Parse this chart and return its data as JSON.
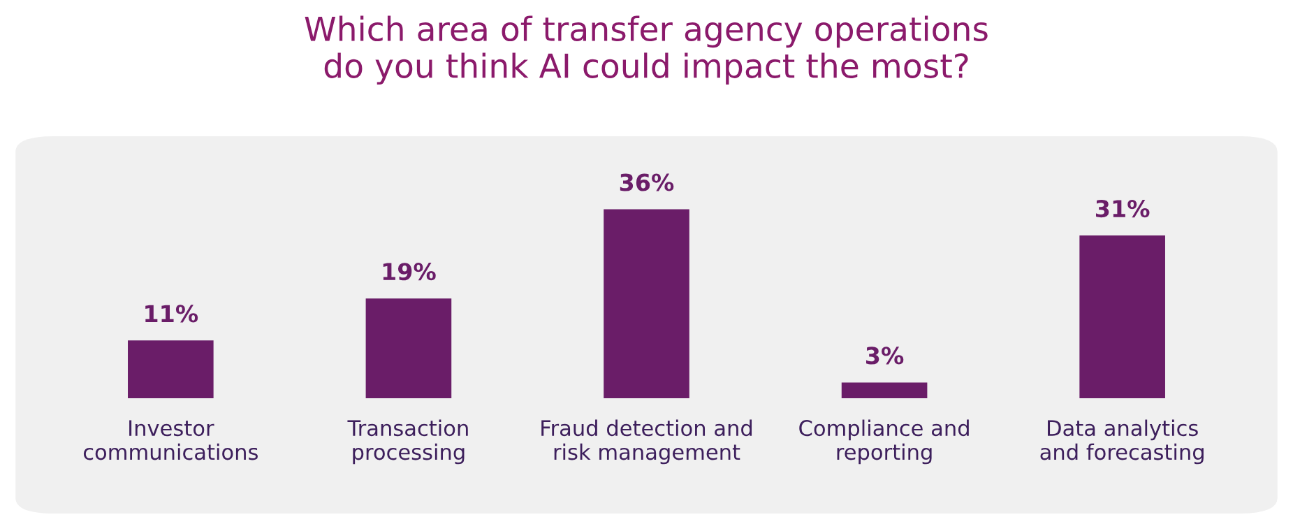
{
  "chart_data": {
    "type": "bar",
    "title": "Which area of transfer agency operations\ndo you think AI could impact the most?",
    "categories": [
      "Investor\ncommunications",
      "Transaction\nprocessing",
      "Fraud detection and\nrisk management",
      "Compliance and\nreporting",
      "Data analytics\nand forecasting"
    ],
    "values": [
      11,
      19,
      36,
      3,
      31
    ],
    "color": "#6a1d68",
    "value_labels": [
      "11%",
      "19%",
      "36%",
      "3%",
      "31%"
    ]
  }
}
